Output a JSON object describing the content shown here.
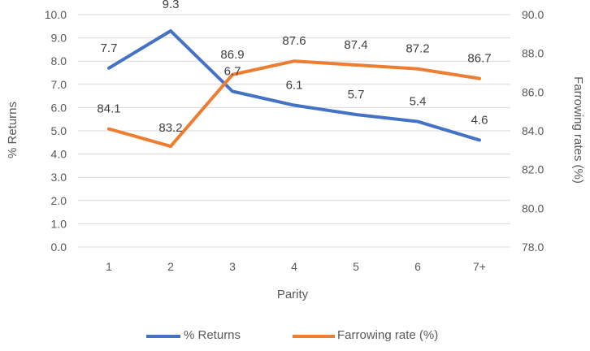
{
  "chart_data": {
    "type": "line",
    "categories": [
      "1",
      "2",
      "3",
      "4",
      "5",
      "6",
      "7+"
    ],
    "xlabel": "Parity",
    "ylabel_left": "% Returns",
    "ylabel_right": "Farrowing rates (%)",
    "y_left": {
      "range": [
        0,
        10
      ],
      "ticks": [
        "0.0",
        "1.0",
        "2.0",
        "3.0",
        "4.0",
        "5.0",
        "6.0",
        "7.0",
        "8.0",
        "9.0",
        "10.0"
      ]
    },
    "y_right": {
      "range": [
        78,
        90
      ],
      "ticks": [
        "78.0",
        "80.0",
        "82.0",
        "84.0",
        "86.0",
        "88.0",
        "90.0"
      ]
    },
    "grid": true,
    "legend_position": "bottom",
    "series": [
      {
        "name": "% Returns",
        "axis": "left",
        "color": "#4472C4",
        "values": [
          7.7,
          9.3,
          6.7,
          6.1,
          5.7,
          5.4,
          4.6
        ],
        "labels": [
          "7.7",
          "9.3",
          "6.7",
          "6.1",
          "5.7",
          "5.4",
          "4.6"
        ]
      },
      {
        "name": "Farrowing rate (%)",
        "axis": "right",
        "color": "#ED7D31",
        "values": [
          84.1,
          83.2,
          86.9,
          87.6,
          87.4,
          87.2,
          86.7
        ],
        "labels": [
          "84.1",
          "83.2",
          "86.9",
          "87.6",
          "87.4",
          "87.2",
          "86.7"
        ]
      }
    ]
  }
}
